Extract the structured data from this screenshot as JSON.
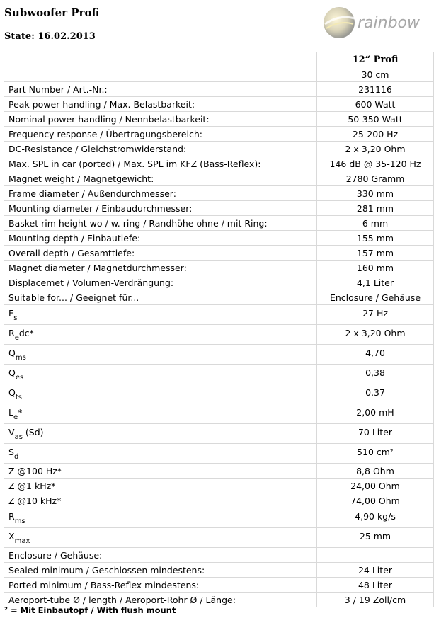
{
  "header": {
    "title": "Subwoofer Profi",
    "state": "State: 16.02.2013",
    "logo_text": "rainbow"
  },
  "table": {
    "column_header": "12“ Profi",
    "rows": [
      {
        "label": "",
        "value": "30 cm"
      },
      {
        "label": "Part Number / Art.-Nr.:",
        "value": "231116"
      },
      {
        "label": "Peak power handling / Max. Belastbarkeit:",
        "value": "600 Watt"
      },
      {
        "label": "Nominal power handling / Nennbelastbarkeit:",
        "value": "50-350 Watt"
      },
      {
        "label": "Frequency response / Übertragungsbereich:",
        "value": "25-200 Hz"
      },
      {
        "label": "DC-Resistance / Gleichstromwiderstand:",
        "value": "2 x 3,20 Ohm"
      },
      {
        "label": "Max. SPL in car (ported) / Max. SPL im KFZ (Bass-Reflex):",
        "value": "146 dB @ 35-120 Hz"
      },
      {
        "label": "Magnet weight / Magnetgewicht:",
        "value": "2780 Gramm"
      },
      {
        "label": "Frame diameter / Außendurchmesser:",
        "value": "330 mm"
      },
      {
        "label": "Mounting diameter / Einbaudurchmesser:",
        "value": "281 mm"
      },
      {
        "label": "Basket rim height wo / w. ring / Randhöhe ohne / mit Ring:",
        "value": "6 mm"
      },
      {
        "label": "Mounting depth / Einbautiefe:",
        "value": "155 mm"
      },
      {
        "label": "Overall depth / Gesamttiefe:",
        "value": "157 mm"
      },
      {
        "label": "Magnet diameter / Magnetdurchmesser:",
        "value": "160 mm"
      },
      {
        "label": "Displacemet / Volumen-Verdrängung:",
        "value": "4,1 Liter"
      },
      {
        "label": "Suitable for... / Geeignet für...",
        "value": "Enclosure / Gehäuse"
      },
      {
        "label": "F",
        "sub": "s",
        "suffix": "",
        "value": "27 Hz"
      },
      {
        "label": "R",
        "sub": "e",
        "suffix": "dc*",
        "value": "2 x 3,20 Ohm"
      },
      {
        "label": "Q",
        "sub": "ms",
        "suffix": "",
        "value": "4,70"
      },
      {
        "label": "Q",
        "sub": "es",
        "suffix": "",
        "value": "0,38"
      },
      {
        "label": "Q",
        "sub": "ts",
        "suffix": "",
        "value": "0,37"
      },
      {
        "label": "L",
        "sub": "e",
        "suffix": "*",
        "value": "2,00 mH"
      },
      {
        "label": "V",
        "sub": "as",
        "suffix": " (Sd)",
        "value": "70 Liter"
      },
      {
        "label": "S",
        "sub": "d",
        "suffix": "",
        "value": "510 cm²"
      },
      {
        "label": "Z @100 Hz*",
        "value": "8,8 Ohm"
      },
      {
        "label": "Z @1 kHz*",
        "value": "24,00 Ohm"
      },
      {
        "label": "Z @10 kHz*",
        "value": "74,00 Ohm"
      },
      {
        "label": "R",
        "sub": "ms",
        "suffix": "",
        "value": "4,90 kg/s"
      },
      {
        "label": "X",
        "sub": "max",
        "suffix": "",
        "value": "25 mm"
      },
      {
        "label": "Enclosure / Gehäuse:",
        "value": ""
      },
      {
        "label": "Sealed minimum / Geschlossen mindestens:",
        "value": "24 Liter"
      },
      {
        "label": "Ported minimum / Bass-Reflex mindestens:",
        "value": "48 Liter"
      },
      {
        "label": "Aeroport-tube Ø / length / Aeroport-Rohr Ø / Länge:",
        "value": "3 / 19 Zoll/cm"
      }
    ]
  },
  "footnote": "² = Mit Einbautopf / With flush mount"
}
